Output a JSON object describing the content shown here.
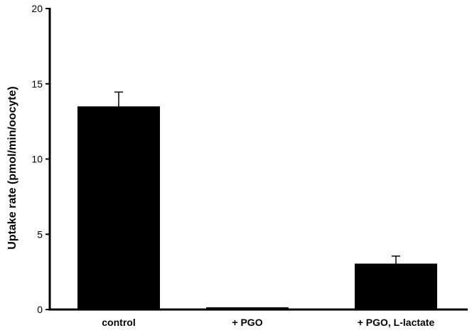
{
  "chart_data": {
    "type": "bar",
    "title": "",
    "xlabel": "",
    "ylabel": "Uptake rate (pmol/min/oocyte)",
    "categories": [
      "control",
      "+ PGO",
      "+ PGO, L-lactate"
    ],
    "values": [
      13.5,
      0.15,
      3.05
    ],
    "errors": [
      0.95,
      0.05,
      0.5
    ],
    "ylim": [
      0,
      20
    ],
    "yticks": [
      0,
      5,
      10,
      15,
      20
    ],
    "ytick_labels": [
      "0",
      "5",
      "10",
      "15",
      "20"
    ],
    "grid": false,
    "legend": "none",
    "bar_color": "#000000"
  }
}
